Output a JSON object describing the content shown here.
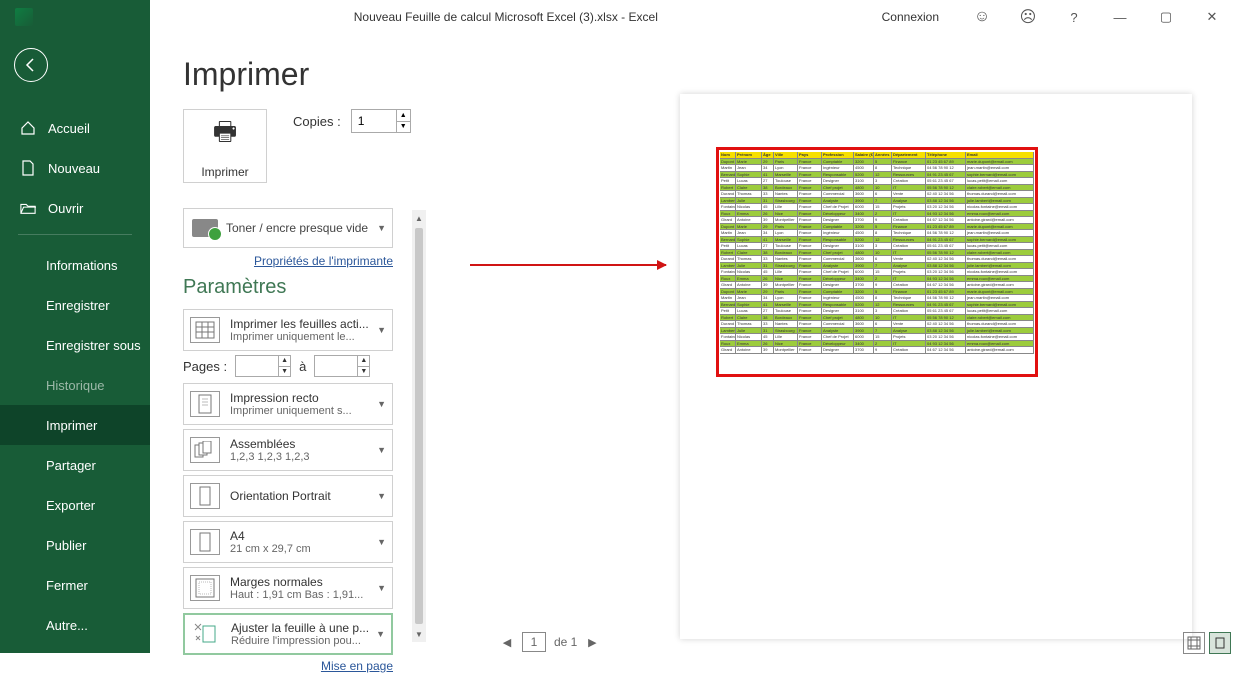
{
  "titlebar": {
    "document": "Nouveau Feuille de calcul Microsoft Excel (3).xlsx  -  Excel",
    "login": "Connexion"
  },
  "sidebar": {
    "items": [
      {
        "label": "Accueil",
        "icon": "home"
      },
      {
        "label": "Nouveau",
        "icon": "new"
      },
      {
        "label": "Ouvrir",
        "icon": "open"
      }
    ],
    "items2": [
      {
        "label": "Informations"
      },
      {
        "label": "Enregistrer"
      },
      {
        "label": "Enregistrer sous"
      },
      {
        "label": "Historique",
        "disabled": true
      },
      {
        "label": "Imprimer",
        "active": true
      },
      {
        "label": "Partager"
      },
      {
        "label": "Exporter"
      },
      {
        "label": "Publier"
      },
      {
        "label": "Fermer"
      },
      {
        "label": "Autre..."
      }
    ]
  },
  "print": {
    "title": "Imprimer",
    "button": "Imprimer",
    "copies_label": "Copies :",
    "copies_value": "1",
    "printer_status": "Toner / encre presque vide",
    "printer_props": "Propriétés de l'imprimante",
    "params_title": "Paramètres",
    "opt_sheets_l1": "Imprimer les feuilles acti...",
    "opt_sheets_l2": "Imprimer uniquement le...",
    "pages_label": "Pages :",
    "pages_to": "à",
    "opt_recto_l1": "Impression recto",
    "opt_recto_l2": "Imprimer uniquement s...",
    "opt_collate_l1": "Assemblées",
    "opt_collate_l2": "1,2,3    1,2,3    1,2,3",
    "opt_orient": "Orientation Portrait",
    "opt_paper_l1": "A4",
    "opt_paper_l2": "21 cm x 29,7 cm",
    "opt_margins_l1": "Marges normales",
    "opt_margins_l2": "Haut : 1,91 cm Bas : 1,91...",
    "opt_fit_l1": "Ajuster la feuille à une p...",
    "opt_fit_l2": "Réduire l'impression pou...",
    "page_setup": "Mise en page"
  },
  "preview": {
    "page_current": "1",
    "page_of": "de 1"
  },
  "previewTable": {
    "headers": [
      "Nom",
      "Prénom",
      "Âge",
      "Ville",
      "Pays",
      "Profession",
      "Salaire (€)",
      "Années",
      "Département",
      "Téléphone",
      "Email"
    ],
    "rows": [
      [
        "Dupont",
        "Marie",
        "29",
        "Paris",
        "France",
        "Comptable",
        "3200",
        "5",
        "Finance",
        "01 23 45 67 89",
        "marie.dupont@email.com"
      ],
      [
        "Martin",
        "Jean",
        "34",
        "Lyon",
        "France",
        "Ingénieur",
        "4500",
        "8",
        "Technique",
        "04 56 78 90 12",
        "jean.martin@email.com"
      ],
      [
        "Bernard",
        "Sophie",
        "41",
        "Marseille",
        "France",
        "Responsable",
        "5200",
        "12",
        "Ressources",
        "04 91 23 45 67",
        "sophie.bernard@email.com"
      ],
      [
        "Petit",
        "Lucas",
        "27",
        "Toulouse",
        "France",
        "Designer",
        "3100",
        "3",
        "Création",
        "05 61 23 45 67",
        "lucas.petit@email.com"
      ],
      [
        "Robert",
        "Claire",
        "38",
        "Bordeaux",
        "France",
        "Chef projet",
        "4800",
        "10",
        "IT",
        "05 56 78 90 12",
        "claire.robert@email.com"
      ],
      [
        "Durand",
        "Thomas",
        "33",
        "Nantes",
        "France",
        "Commercial",
        "3600",
        "6",
        "Vente",
        "02 40 12 34 56",
        "thomas.durand@email.com"
      ],
      [
        "Lambert",
        "Julie",
        "31",
        "Strasbourg",
        "France",
        "Analyste",
        "3900",
        "7",
        "Analyse",
        "03 88 12 34 56",
        "julie.lambert@email.com"
      ],
      [
        "Fontaine",
        "Nicolas",
        "45",
        "Lille",
        "France",
        "Chef de Projet",
        "6000",
        "15",
        "Projets",
        "03 20 12 34 56",
        "nicolas.fontaine@email.com"
      ],
      [
        "Roux",
        "Emma",
        "26",
        "Nice",
        "France",
        "Développeur",
        "3400",
        "2",
        "IT",
        "04 93 12 34 56",
        "emma.roux@email.com"
      ],
      [
        "Girard",
        "Antoine",
        "39",
        "Montpellier",
        "France",
        "Designer",
        "3700",
        "9",
        "Création",
        "04 67 12 34 56",
        "antoine.girard@email.com"
      ],
      [
        "Dupont",
        "Marie",
        "29",
        "Paris",
        "France",
        "Comptable",
        "3200",
        "5",
        "Finance",
        "01 23 45 67 89",
        "marie.dupont@email.com"
      ],
      [
        "Martin",
        "Jean",
        "34",
        "Lyon",
        "France",
        "Ingénieur",
        "4500",
        "8",
        "Technique",
        "04 56 78 90 12",
        "jean.martin@email.com"
      ],
      [
        "Bernard",
        "Sophie",
        "41",
        "Marseille",
        "France",
        "Responsable",
        "5200",
        "12",
        "Ressources",
        "04 91 23 45 67",
        "sophie.bernard@email.com"
      ],
      [
        "Petit",
        "Lucas",
        "27",
        "Toulouse",
        "France",
        "Designer",
        "3100",
        "3",
        "Création",
        "05 61 23 45 67",
        "lucas.petit@email.com"
      ],
      [
        "Robert",
        "Claire",
        "38",
        "Bordeaux",
        "France",
        "Chef projet",
        "4800",
        "10",
        "IT",
        "05 56 78 90 12",
        "claire.robert@email.com"
      ],
      [
        "Durand",
        "Thomas",
        "33",
        "Nantes",
        "France",
        "Commercial",
        "3600",
        "6",
        "Vente",
        "02 40 12 34 56",
        "thomas.durand@email.com"
      ],
      [
        "Lambert",
        "Julie",
        "31",
        "Strasbourg",
        "France",
        "Analyste",
        "3900",
        "7",
        "Analyse",
        "03 88 12 34 56",
        "julie.lambert@email.com"
      ],
      [
        "Fontaine",
        "Nicolas",
        "45",
        "Lille",
        "France",
        "Chef de Projet",
        "6000",
        "15",
        "Projets",
        "03 20 12 34 56",
        "nicolas.fontaine@email.com"
      ],
      [
        "Roux",
        "Emma",
        "26",
        "Nice",
        "France",
        "Développeur",
        "3400",
        "2",
        "IT",
        "04 93 12 34 56",
        "emma.roux@email.com"
      ],
      [
        "Girard",
        "Antoine",
        "39",
        "Montpellier",
        "France",
        "Designer",
        "3700",
        "9",
        "Création",
        "04 67 12 34 56",
        "antoine.girard@email.com"
      ],
      [
        "Dupont",
        "Marie",
        "29",
        "Paris",
        "France",
        "Comptable",
        "3200",
        "5",
        "Finance",
        "01 23 45 67 89",
        "marie.dupont@email.com"
      ],
      [
        "Martin",
        "Jean",
        "34",
        "Lyon",
        "France",
        "Ingénieur",
        "4500",
        "8",
        "Technique",
        "04 56 78 90 12",
        "jean.martin@email.com"
      ],
      [
        "Bernard",
        "Sophie",
        "41",
        "Marseille",
        "France",
        "Responsable",
        "5200",
        "12",
        "Ressources",
        "04 91 23 45 67",
        "sophie.bernard@email.com"
      ],
      [
        "Petit",
        "Lucas",
        "27",
        "Toulouse",
        "France",
        "Designer",
        "3100",
        "3",
        "Création",
        "05 61 23 45 67",
        "lucas.petit@email.com"
      ],
      [
        "Robert",
        "Claire",
        "38",
        "Bordeaux",
        "France",
        "Chef projet",
        "4800",
        "10",
        "IT",
        "05 56 78 90 12",
        "claire.robert@email.com"
      ],
      [
        "Durand",
        "Thomas",
        "33",
        "Nantes",
        "France",
        "Commercial",
        "3600",
        "6",
        "Vente",
        "02 40 12 34 56",
        "thomas.durand@email.com"
      ],
      [
        "Lambert",
        "Julie",
        "31",
        "Strasbourg",
        "France",
        "Analyste",
        "3900",
        "7",
        "Analyse",
        "03 88 12 34 56",
        "julie.lambert@email.com"
      ],
      [
        "Fontaine",
        "Nicolas",
        "45",
        "Lille",
        "France",
        "Chef de Projet",
        "6000",
        "15",
        "Projets",
        "03 20 12 34 56",
        "nicolas.fontaine@email.com"
      ],
      [
        "Roux",
        "Emma",
        "26",
        "Nice",
        "France",
        "Développeur",
        "3400",
        "2",
        "IT",
        "04 93 12 34 56",
        "emma.roux@email.com"
      ],
      [
        "Girard",
        "Antoine",
        "39",
        "Montpellier",
        "France",
        "Designer",
        "3700",
        "9",
        "Création",
        "04 67 12 34 56",
        "antoine.girard@email.com"
      ]
    ],
    "header_bg": "#f6e000",
    "alt_row_bg": "#9ccc3c",
    "border_color": "#888888"
  },
  "colors": {
    "excel_green": "#185c37",
    "accent_green": "#407855",
    "red_highlight": "#e11010",
    "arrow_red": "#d01414"
  }
}
